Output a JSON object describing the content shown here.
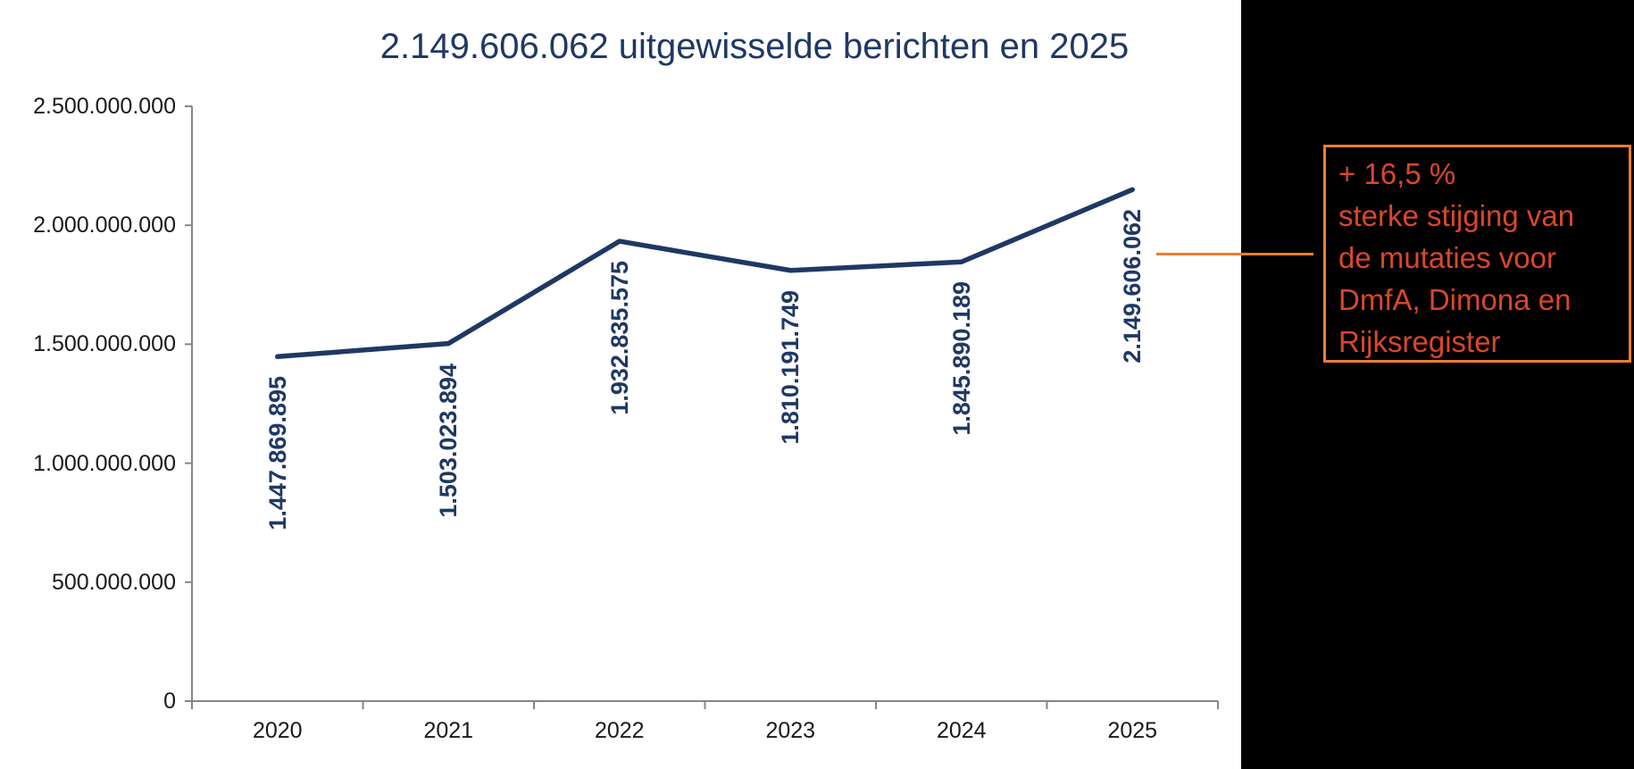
{
  "page": {
    "background": "#ffffff"
  },
  "chart_data": {
    "type": "line",
    "title": "2.149.606.062 uitgewisselde berichten en 2025",
    "categories": [
      "2020",
      "2021",
      "2022",
      "2023",
      "2024",
      "2025"
    ],
    "series": [
      {
        "name": "uitgewisselde berichten",
        "values": [
          1447869895,
          1503023894,
          1932835575,
          1810191749,
          1845890189,
          2149606062
        ],
        "labels": [
          "1.447.869.895",
          "1.503.023.894",
          "1.932.835.575",
          "1.810.191.749",
          "1.845.890.189",
          "2.149.606.062"
        ],
        "color": "#1F3864"
      }
    ],
    "ylim": [
      0,
      2500000000
    ],
    "yticks": [
      {
        "value": 0,
        "label": "0"
      },
      {
        "value": 500000000,
        "label": "500.000.000"
      },
      {
        "value": 1000000000,
        "label": "1.000.000.000"
      },
      {
        "value": 1500000000,
        "label": "1.500.000.000"
      },
      {
        "value": 2000000000,
        "label": "2.000.000.000"
      },
      {
        "value": 2500000000,
        "label": "2.500.000.000"
      }
    ],
    "grid": false,
    "legend": "none",
    "data_labels_rotated": true
  },
  "annotation": {
    "lines": [
      "+ 16,5 %",
      "sterke stijging van",
      "de mutaties voor",
      "DmfA, Dimona en",
      "Rijksregister"
    ],
    "text_color": "#D9472B",
    "border_color": "#ED7D31"
  },
  "side_panel": {
    "color": "#000000"
  },
  "colors": {
    "title": "#1F3864",
    "series_line": "#1F3864",
    "data_label": "#1F3864",
    "axis_line": "#868686",
    "axis_text": "#1a1a1a"
  }
}
